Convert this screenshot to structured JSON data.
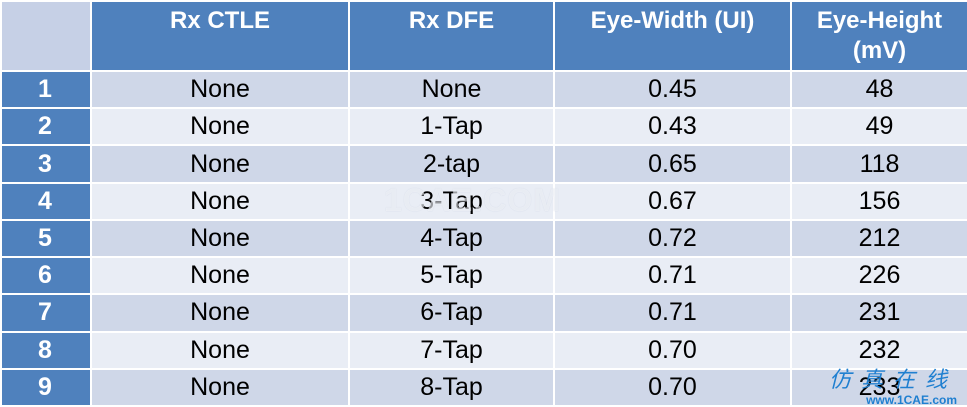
{
  "headers": [
    "",
    "Rx CTLE",
    "Rx DFE",
    "Eye-Width (UI)",
    "Eye-Height (mV)"
  ],
  "rows": [
    {
      "idx": "1",
      "ctle": "None",
      "dfe": "None",
      "eye_width": "0.45",
      "eye_height": "48"
    },
    {
      "idx": "2",
      "ctle": "None",
      "dfe": "1-Tap",
      "eye_width": "0.43",
      "eye_height": "49"
    },
    {
      "idx": "3",
      "ctle": "None",
      "dfe": "2-tap",
      "eye_width": "0.65",
      "eye_height": "118"
    },
    {
      "idx": "4",
      "ctle": "None",
      "dfe": "3-Tap",
      "eye_width": "0.67",
      "eye_height": "156"
    },
    {
      "idx": "5",
      "ctle": "None",
      "dfe": "4-Tap",
      "eye_width": "0.72",
      "eye_height": "212"
    },
    {
      "idx": "6",
      "ctle": "None",
      "dfe": "5-Tap",
      "eye_width": "0.71",
      "eye_height": "226"
    },
    {
      "idx": "7",
      "ctle": "None",
      "dfe": "6-Tap",
      "eye_width": "0.71",
      "eye_height": "231"
    },
    {
      "idx": "8",
      "ctle": "None",
      "dfe": "7-Tap",
      "eye_width": "0.70",
      "eye_height": "232"
    },
    {
      "idx": "9",
      "ctle": "None",
      "dfe": "8-Tap",
      "eye_width": "0.70",
      "eye_height": "233"
    }
  ],
  "watermark": "1CAE.COM",
  "logo": {
    "cn": "仿真在线",
    "url": "www.1CAE.com"
  },
  "colors": {
    "header_bg": "#4f81bd",
    "row_odd": "#cfd7e8",
    "row_even": "#e9edf5",
    "logo": "#1f7fd0"
  }
}
